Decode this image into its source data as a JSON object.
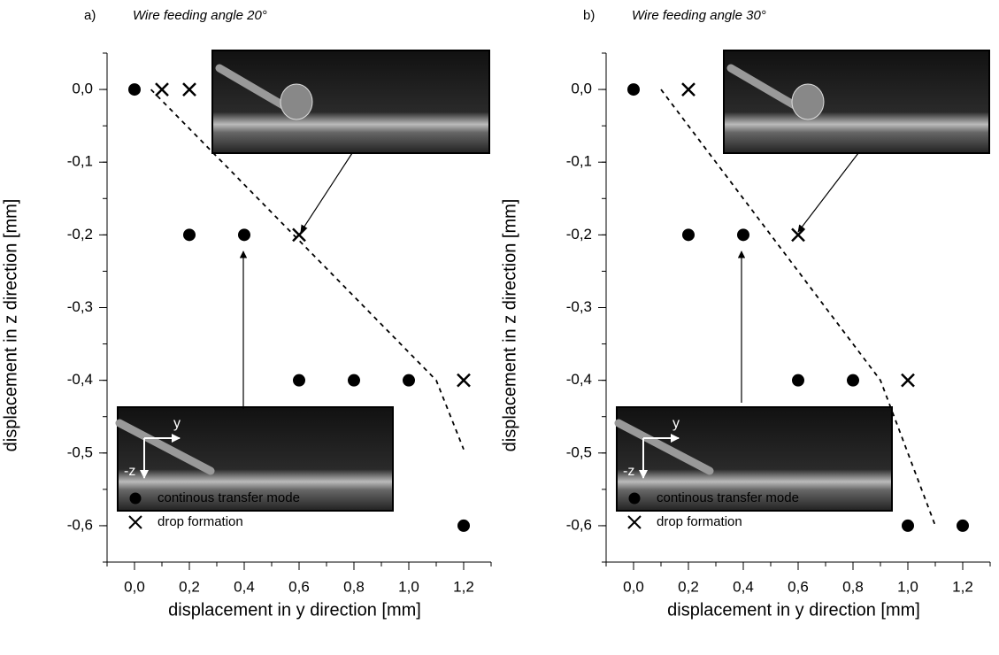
{
  "chart_data": [
    {
      "type": "scatter",
      "label": "a)",
      "title": "Wire feeding angle 20°",
      "x_label": "displacement in y direction [mm]",
      "y_label": "displacement in z direction [mm]",
      "xlim": [
        -0.1,
        1.3
      ],
      "ylim": [
        -0.65,
        0.05
      ],
      "xticks": [
        {
          "value": 0,
          "label": "0,0"
        },
        {
          "value": 0.2,
          "label": "0,2"
        },
        {
          "value": 0.4,
          "label": "0,4"
        },
        {
          "value": 0.6,
          "label": "0,6"
        },
        {
          "value": 0.8,
          "label": "0,8"
        },
        {
          "value": 1.0,
          "label": "1,0"
        },
        {
          "value": 1.2,
          "label": "1,2"
        }
      ],
      "yticks": [
        {
          "value": 0,
          "label": "0,0"
        },
        {
          "value": -0.1,
          "label": "-0,1"
        },
        {
          "value": -0.2,
          "label": "-0,2"
        },
        {
          "value": -0.3,
          "label": "-0,3"
        },
        {
          "value": -0.4,
          "label": "-0,4"
        },
        {
          "value": -0.5,
          "label": "-0,5"
        },
        {
          "value": -0.6,
          "label": "-0,6"
        }
      ],
      "legend": "lower left",
      "inset_labels": [
        "y",
        "-z"
      ],
      "series": [
        {
          "name": "continous transfer mode",
          "marker": "circle",
          "color": "#000000",
          "x": [
            0,
            0.2,
            0.4,
            0.6,
            0.8,
            1.0,
            1.2
          ],
          "values": [
            0,
            -0.2,
            -0.2,
            -0.4,
            -0.4,
            -0.4,
            -0.6
          ]
        },
        {
          "name": "drop formation",
          "marker": "cross",
          "color": "#000000",
          "x": [
            0.1,
            0.2,
            0.6,
            1.2
          ],
          "values": [
            0,
            0,
            -0.2,
            -0.4
          ]
        },
        {
          "marker": "dashed-line",
          "color": "#000000",
          "x": [
            0.06,
            1.1,
            1.2
          ],
          "values": [
            0,
            -0.4,
            -0.495
          ]
        }
      ]
    },
    {
      "type": "scatter",
      "label": "b)",
      "title": "Wire feeding angle 30°",
      "x_label": "displacement in y direction [mm]",
      "y_label": "displacement in z direction [mm]",
      "xlim": [
        -0.1,
        1.3
      ],
      "ylim": [
        -0.65,
        0.05
      ],
      "xticks": [
        {
          "value": 0,
          "label": "0,0"
        },
        {
          "value": 0.2,
          "label": "0,2"
        },
        {
          "value": 0.4,
          "label": "0,4"
        },
        {
          "value": 0.6,
          "label": "0,6"
        },
        {
          "value": 0.8,
          "label": "0,8"
        },
        {
          "value": 1.0,
          "label": "1,0"
        },
        {
          "value": 1.2,
          "label": "1,2"
        }
      ],
      "yticks": [
        {
          "value": 0,
          "label": "0,0"
        },
        {
          "value": -0.1,
          "label": "-0,1"
        },
        {
          "value": -0.2,
          "label": "-0,2"
        },
        {
          "value": -0.3,
          "label": "-0,3"
        },
        {
          "value": -0.4,
          "label": "-0,4"
        },
        {
          "value": -0.5,
          "label": "-0,5"
        },
        {
          "value": -0.6,
          "label": "-0,6"
        }
      ],
      "legend": "lower left",
      "inset_labels": [
        "y",
        "-z"
      ],
      "series": [
        {
          "name": "continous transfer mode",
          "marker": "circle",
          "color": "#000000",
          "x": [
            0,
            0.2,
            0.4,
            0.6,
            0.8,
            1.0,
            1.2
          ],
          "values": [
            0,
            -0.2,
            -0.2,
            -0.4,
            -0.4,
            -0.6,
            -0.6
          ]
        },
        {
          "name": "drop formation",
          "marker": "cross",
          "color": "#000000",
          "x": [
            0.2,
            0.6,
            1.0
          ],
          "values": [
            0,
            -0.2,
            -0.4
          ]
        },
        {
          "marker": "dashed-line",
          "color": "#000000",
          "x": [
            0.1,
            0.9,
            1.1
          ],
          "values": [
            0,
            -0.4,
            -0.6
          ]
        }
      ]
    }
  ]
}
